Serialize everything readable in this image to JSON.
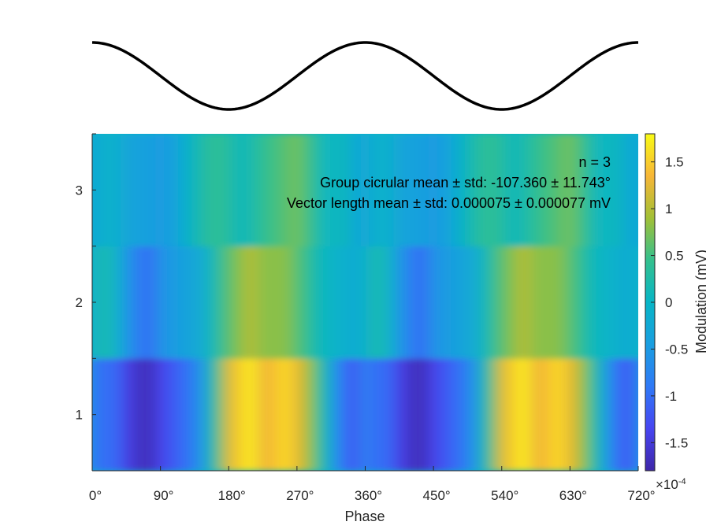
{
  "chart_data": [
    {
      "type": "line",
      "title": "",
      "x": [
        0,
        45,
        90,
        135,
        180,
        225,
        270,
        315,
        360,
        405,
        450,
        495,
        540,
        585,
        630,
        675,
        720
      ],
      "series": [
        {
          "values": [
            1,
            0.707,
            0,
            -0.707,
            -1,
            -0.707,
            0,
            0.707,
            1,
            0.707,
            0,
            -0.707,
            -1,
            -0.707,
            0,
            0.707,
            1
          ]
        }
      ],
      "xlim": [
        0,
        720
      ],
      "ylim": [
        -1,
        1
      ],
      "axes_visible": false,
      "color": "#000000"
    },
    {
      "type": "heatmap",
      "xlabel": "Phase",
      "ylabel": "",
      "xlim": [
        0,
        720
      ],
      "ylim": [
        0.5,
        3.5
      ],
      "xticks": [
        0,
        90,
        180,
        270,
        360,
        450,
        540,
        630,
        720
      ],
      "xtick_labels": [
        "0°",
        "90°",
        "180°",
        "270°",
        "360°",
        "450°",
        "540°",
        "630°",
        "720°"
      ],
      "yticks": [
        1,
        2,
        3
      ],
      "ytick_labels": [
        "1",
        "2",
        "3"
      ],
      "rows": [
        1,
        2,
        3
      ],
      "phase_bins": [
        0,
        15,
        30,
        45,
        60,
        75,
        90,
        105,
        120,
        135,
        150,
        165,
        180,
        195,
        210,
        225,
        240,
        255,
        270,
        285,
        300,
        315,
        330,
        345,
        360
      ],
      "values": [
        [
          -0.8,
          -1.0,
          -1.0,
          -1.4,
          -1.6,
          -1.7,
          -1.4,
          -1.2,
          -1.0,
          -0.8,
          -0.3,
          0.5,
          1.2,
          1.5,
          1.7,
          1.3,
          1.4,
          1.6,
          1.3,
          0.9,
          0.4,
          -0.3,
          -0.9,
          -1.2,
          -0.8
        ],
        [
          -0.1,
          0.2,
          0.0,
          -0.5,
          -0.8,
          -1.0,
          -0.6,
          -0.5,
          -0.4,
          -0.3,
          -0.1,
          0.3,
          0.6,
          0.8,
          1.0,
          0.8,
          0.8,
          0.8,
          0.6,
          0.4,
          0.1,
          0.0,
          -0.1,
          -0.2,
          -0.1
        ],
        [
          -0.3,
          -0.1,
          -0.1,
          -0.3,
          -0.4,
          -0.4,
          -0.5,
          -0.4,
          -0.2,
          0.1,
          0.3,
          0.4,
          0.3,
          0.1,
          0.2,
          0.4,
          0.5,
          0.6,
          0.7,
          0.5,
          0.2,
          0.0,
          0.1,
          -0.2,
          -0.3
        ]
      ],
      "colormap": "parula",
      "colorbar": {
        "label": "Modulation (mV)",
        "ticks": [
          -1.5,
          -1,
          -0.5,
          0,
          0.5,
          1,
          1.5
        ],
        "tick_labels": [
          "-1.5",
          "-1",
          "-0.5",
          "0",
          "0.5",
          "1",
          "1.5"
        ],
        "multiplier": "×10",
        "multiplier_exponent": "-4",
        "clim": [
          -1.8,
          1.8
        ]
      },
      "annotations": [
        "n = 3",
        "Group cicrular mean ± std: -107.360 ± 11.743°",
        "Vector length mean ± std: 0.000075 ± 0.000077 mV"
      ]
    }
  ]
}
